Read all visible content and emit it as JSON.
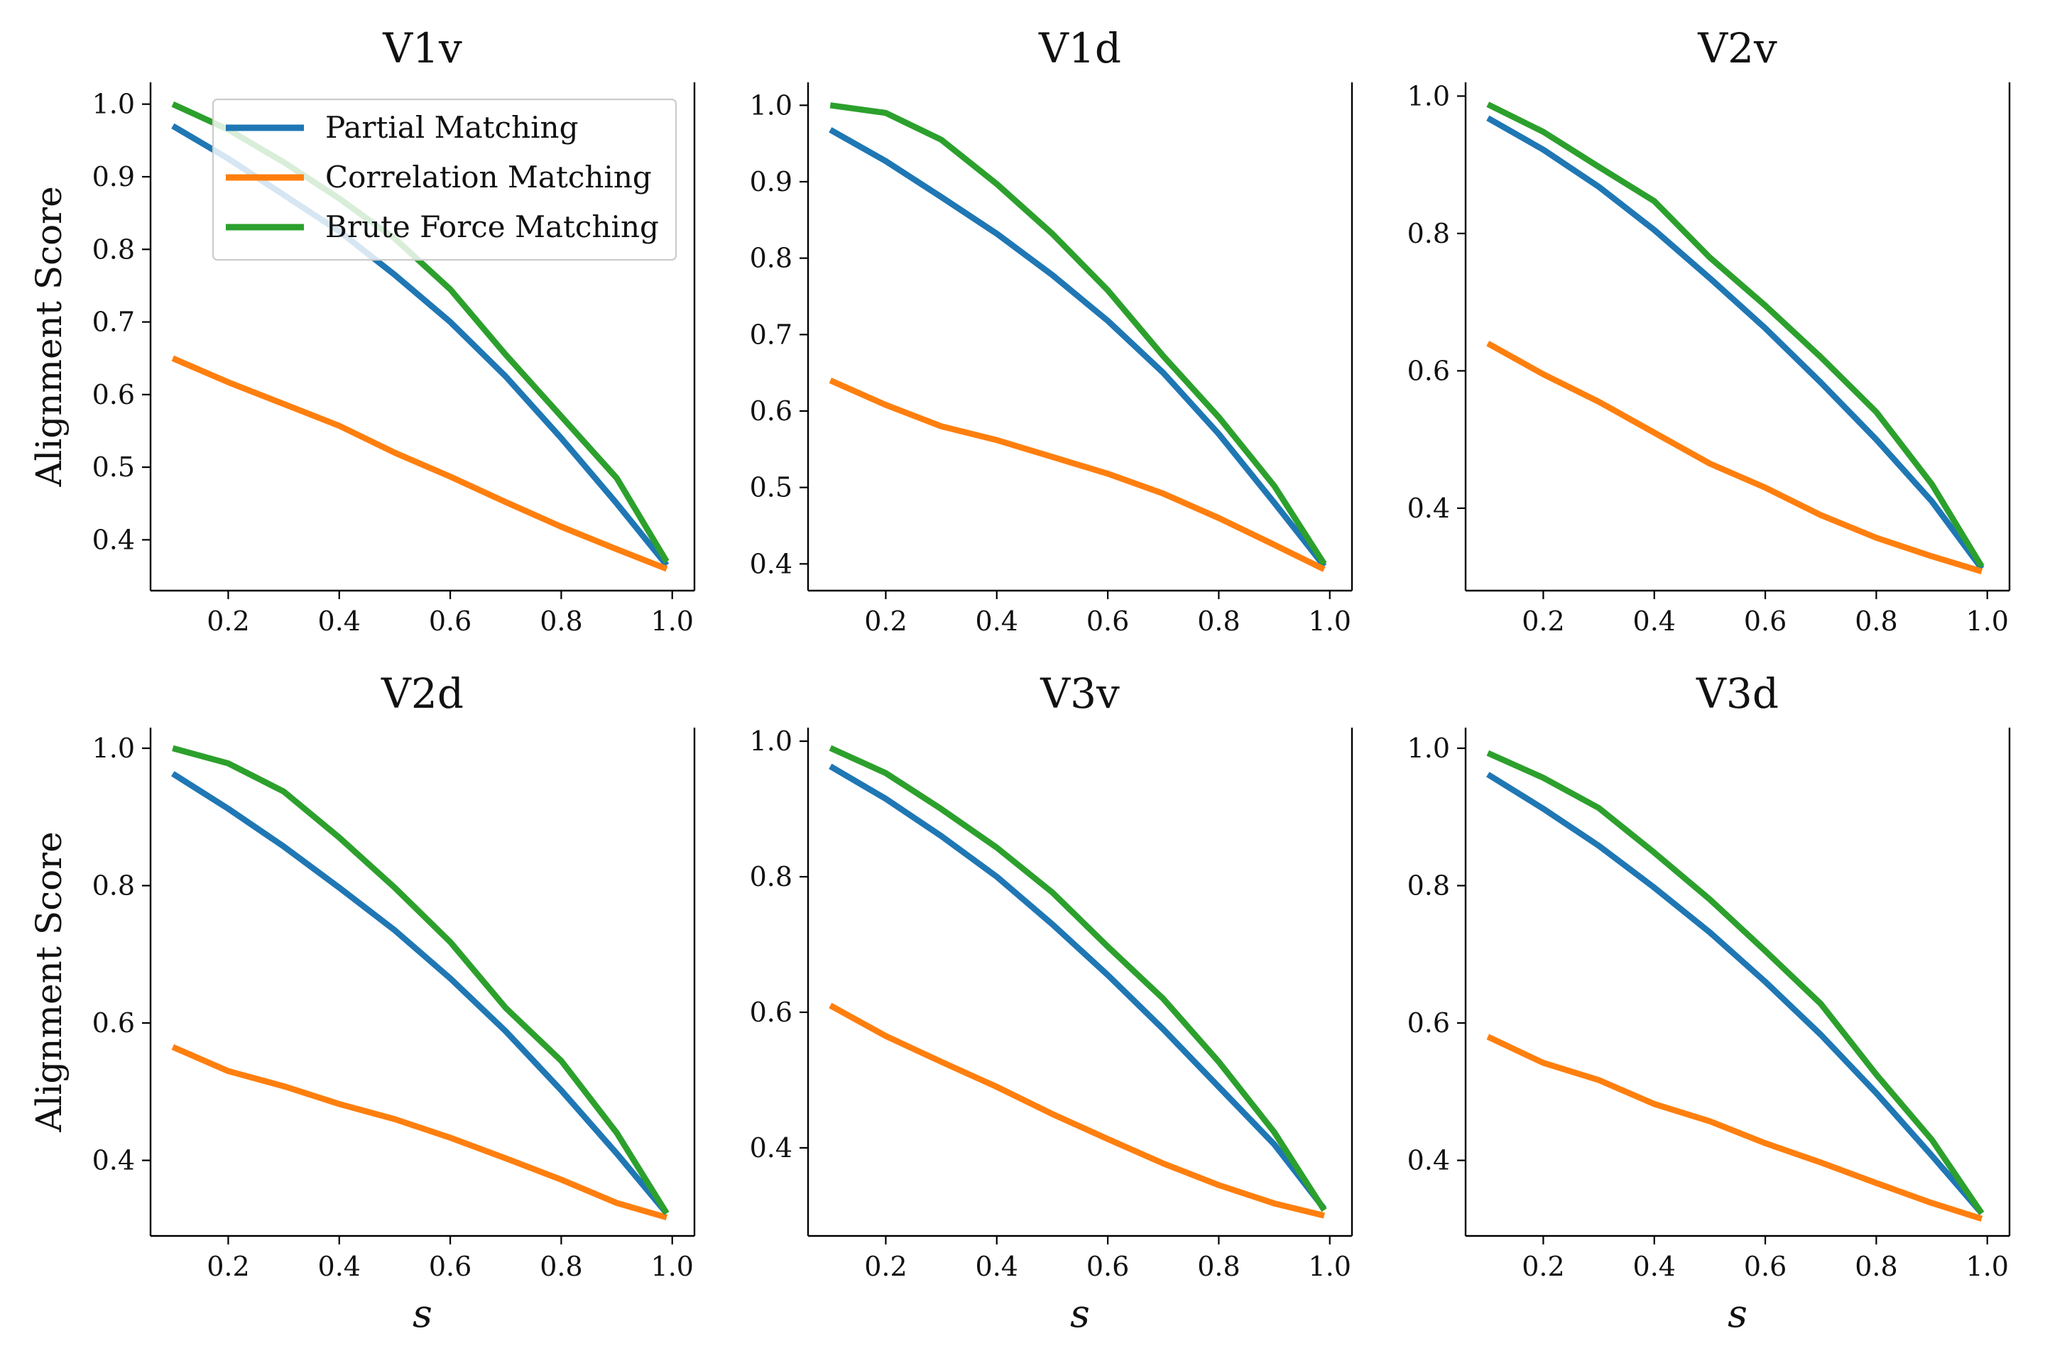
{
  "chart_data": {
    "type": "line",
    "ylabel": "Alignment Score",
    "xlabel": "s",
    "xlim": [
      0.06,
      1.04
    ],
    "xticks": [
      0.2,
      0.4,
      0.6,
      0.8,
      1.0
    ],
    "xtick_labels": [
      "0.2",
      "0.4",
      "0.6",
      "0.8",
      "1.0"
    ],
    "legend": {
      "placement": "upper-right-of-first-panel",
      "entries": [
        "Partial Matching",
        "Correlation Matching",
        "Brute Force Matching"
      ]
    },
    "series_colors": {
      "Partial Matching": "#1f77b4",
      "Correlation Matching": "#ff7f0e",
      "Brute Force Matching": "#2ca02c"
    },
    "x": [
      0.1,
      0.2,
      0.3,
      0.4,
      0.5,
      0.6,
      0.7,
      0.8,
      0.9,
      0.99
    ],
    "panels": [
      {
        "title": "V1v",
        "ylim": [
          0.33,
          1.03
        ],
        "yticks": [
          0.4,
          0.5,
          0.6,
          0.7,
          0.8,
          0.9,
          1.0
        ],
        "ytick_labels": [
          "0.4",
          "0.5",
          "0.6",
          "0.7",
          "0.8",
          "0.9",
          "1.0"
        ],
        "series": [
          {
            "name": "Partial Matching",
            "values": [
              0.97,
              0.925,
              0.875,
              0.825,
              0.765,
              0.7,
              0.625,
              0.54,
              0.45,
              0.365
            ]
          },
          {
            "name": "Correlation Matching",
            "values": [
              0.65,
              0.617,
              0.587,
              0.557,
              0.52,
              0.487,
              0.452,
              0.418,
              0.387,
              0.36
            ]
          },
          {
            "name": "Brute Force Matching",
            "values": [
              1.0,
              0.965,
              0.92,
              0.87,
              0.815,
              0.745,
              0.655,
              0.57,
              0.485,
              0.37
            ]
          }
        ]
      },
      {
        "title": "V1d",
        "ylim": [
          0.365,
          1.03
        ],
        "yticks": [
          0.4,
          0.5,
          0.6,
          0.7,
          0.8,
          0.9,
          1.0
        ],
        "ytick_labels": [
          "0.4",
          "0.5",
          "0.6",
          "0.7",
          "0.8",
          "0.9",
          "1.0"
        ],
        "series": [
          {
            "name": "Partial Matching",
            "values": [
              0.968,
              0.927,
              0.88,
              0.832,
              0.778,
              0.718,
              0.65,
              0.57,
              0.48,
              0.397
            ]
          },
          {
            "name": "Correlation Matching",
            "values": [
              0.64,
              0.608,
              0.58,
              0.562,
              0.54,
              0.518,
              0.492,
              0.46,
              0.425,
              0.393
            ]
          },
          {
            "name": "Brute Force Matching",
            "values": [
              1.0,
              0.99,
              0.955,
              0.897,
              0.832,
              0.758,
              0.672,
              0.592,
              0.502,
              0.4
            ]
          }
        ]
      },
      {
        "title": "V2v",
        "ylim": [
          0.28,
          1.02
        ],
        "yticks": [
          0.4,
          0.6,
          0.8,
          1.0
        ],
        "ytick_labels": [
          "0.4",
          "0.6",
          "0.8",
          "1.0"
        ],
        "series": [
          {
            "name": "Partial Matching",
            "values": [
              0.968,
              0.922,
              0.868,
              0.805,
              0.735,
              0.662,
              0.583,
              0.5,
              0.41,
              0.312
            ]
          },
          {
            "name": "Correlation Matching",
            "values": [
              0.64,
              0.595,
              0.555,
              0.51,
              0.465,
              0.43,
              0.39,
              0.357,
              0.33,
              0.308
            ]
          },
          {
            "name": "Brute Force Matching",
            "values": [
              0.988,
              0.948,
              0.897,
              0.847,
              0.765,
              0.695,
              0.62,
              0.54,
              0.435,
              0.315
            ]
          }
        ]
      },
      {
        "title": "V2d",
        "ylim": [
          0.29,
          1.03
        ],
        "yticks": [
          0.4,
          0.6,
          0.8,
          1.0
        ],
        "ytick_labels": [
          "0.4",
          "0.6",
          "0.8",
          "1.0"
        ],
        "series": [
          {
            "name": "Partial Matching",
            "values": [
              0.963,
              0.912,
              0.857,
              0.797,
              0.735,
              0.665,
              0.588,
              0.502,
              0.41,
              0.323
            ]
          },
          {
            "name": "Correlation Matching",
            "values": [
              0.565,
              0.53,
              0.508,
              0.482,
              0.46,
              0.433,
              0.403,
              0.372,
              0.338,
              0.317
            ]
          },
          {
            "name": "Brute Force Matching",
            "values": [
              1.0,
              0.978,
              0.937,
              0.87,
              0.797,
              0.718,
              0.622,
              0.545,
              0.44,
              0.323
            ]
          }
        ]
      },
      {
        "title": "V3v",
        "ylim": [
          0.27,
          1.02
        ],
        "yticks": [
          0.4,
          0.6,
          0.8,
          1.0
        ],
        "ytick_labels": [
          "0.4",
          "0.6",
          "0.8",
          "1.0"
        ],
        "series": [
          {
            "name": "Partial Matching",
            "values": [
              0.963,
              0.915,
              0.86,
              0.8,
              0.73,
              0.655,
              0.575,
              0.49,
              0.405,
              0.31
            ]
          },
          {
            "name": "Correlation Matching",
            "values": [
              0.61,
              0.565,
              0.527,
              0.49,
              0.45,
              0.413,
              0.377,
              0.345,
              0.318,
              0.3
            ]
          },
          {
            "name": "Brute Force Matching",
            "values": [
              0.99,
              0.953,
              0.9,
              0.843,
              0.777,
              0.697,
              0.62,
              0.527,
              0.423,
              0.308
            ]
          }
        ]
      },
      {
        "title": "V3d",
        "ylim": [
          0.29,
          1.03
        ],
        "yticks": [
          0.4,
          0.6,
          0.8,
          1.0
        ],
        "ytick_labels": [
          "0.4",
          "0.6",
          "0.8",
          "1.0"
        ],
        "series": [
          {
            "name": "Partial Matching",
            "values": [
              0.962,
              0.912,
              0.858,
              0.797,
              0.732,
              0.66,
              0.583,
              0.498,
              0.407,
              0.323
            ]
          },
          {
            "name": "Correlation Matching",
            "values": [
              0.58,
              0.542,
              0.517,
              0.482,
              0.457,
              0.425,
              0.397,
              0.367,
              0.338,
              0.315
            ]
          },
          {
            "name": "Brute Force Matching",
            "values": [
              0.993,
              0.957,
              0.913,
              0.848,
              0.78,
              0.705,
              0.628,
              0.525,
              0.43,
              0.323
            ]
          }
        ]
      }
    ]
  }
}
